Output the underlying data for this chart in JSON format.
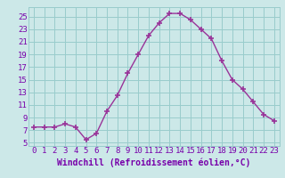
{
  "x": [
    0,
    1,
    2,
    3,
    4,
    5,
    6,
    7,
    8,
    9,
    10,
    11,
    12,
    13,
    14,
    15,
    16,
    17,
    18,
    19,
    20,
    21,
    22,
    23
  ],
  "y": [
    7.5,
    7.5,
    7.5,
    8.0,
    7.5,
    5.5,
    6.5,
    10.0,
    12.5,
    16.0,
    19.0,
    22.0,
    24.0,
    25.5,
    25.5,
    24.5,
    23.0,
    21.5,
    18.0,
    15.0,
    13.5,
    11.5,
    9.5,
    8.5
  ],
  "line_color": "#993399",
  "marker": "+",
  "marker_size": 4,
  "marker_linewidth": 1.2,
  "linewidth": 1.0,
  "bg_color": "#cce8e8",
  "grid_color": "#99cccc",
  "xlabel": "Windchill (Refroidissement éolien,°C)",
  "xlim": [
    -0.5,
    23.5
  ],
  "ylim": [
    4.5,
    26.5
  ],
  "yticks": [
    5,
    7,
    9,
    11,
    13,
    15,
    17,
    19,
    21,
    23,
    25
  ],
  "xtick_labels": [
    "0",
    "1",
    "2",
    "3",
    "4",
    "5",
    "6",
    "7",
    "8",
    "9",
    "10",
    "11",
    "12",
    "13",
    "14",
    "15",
    "16",
    "17",
    "18",
    "19",
    "20",
    "21",
    "22",
    "23"
  ],
  "tick_color": "#7700aa",
  "label_color": "#7700aa",
  "axis_label_fontsize": 7.0,
  "tick_fontsize": 6.5
}
